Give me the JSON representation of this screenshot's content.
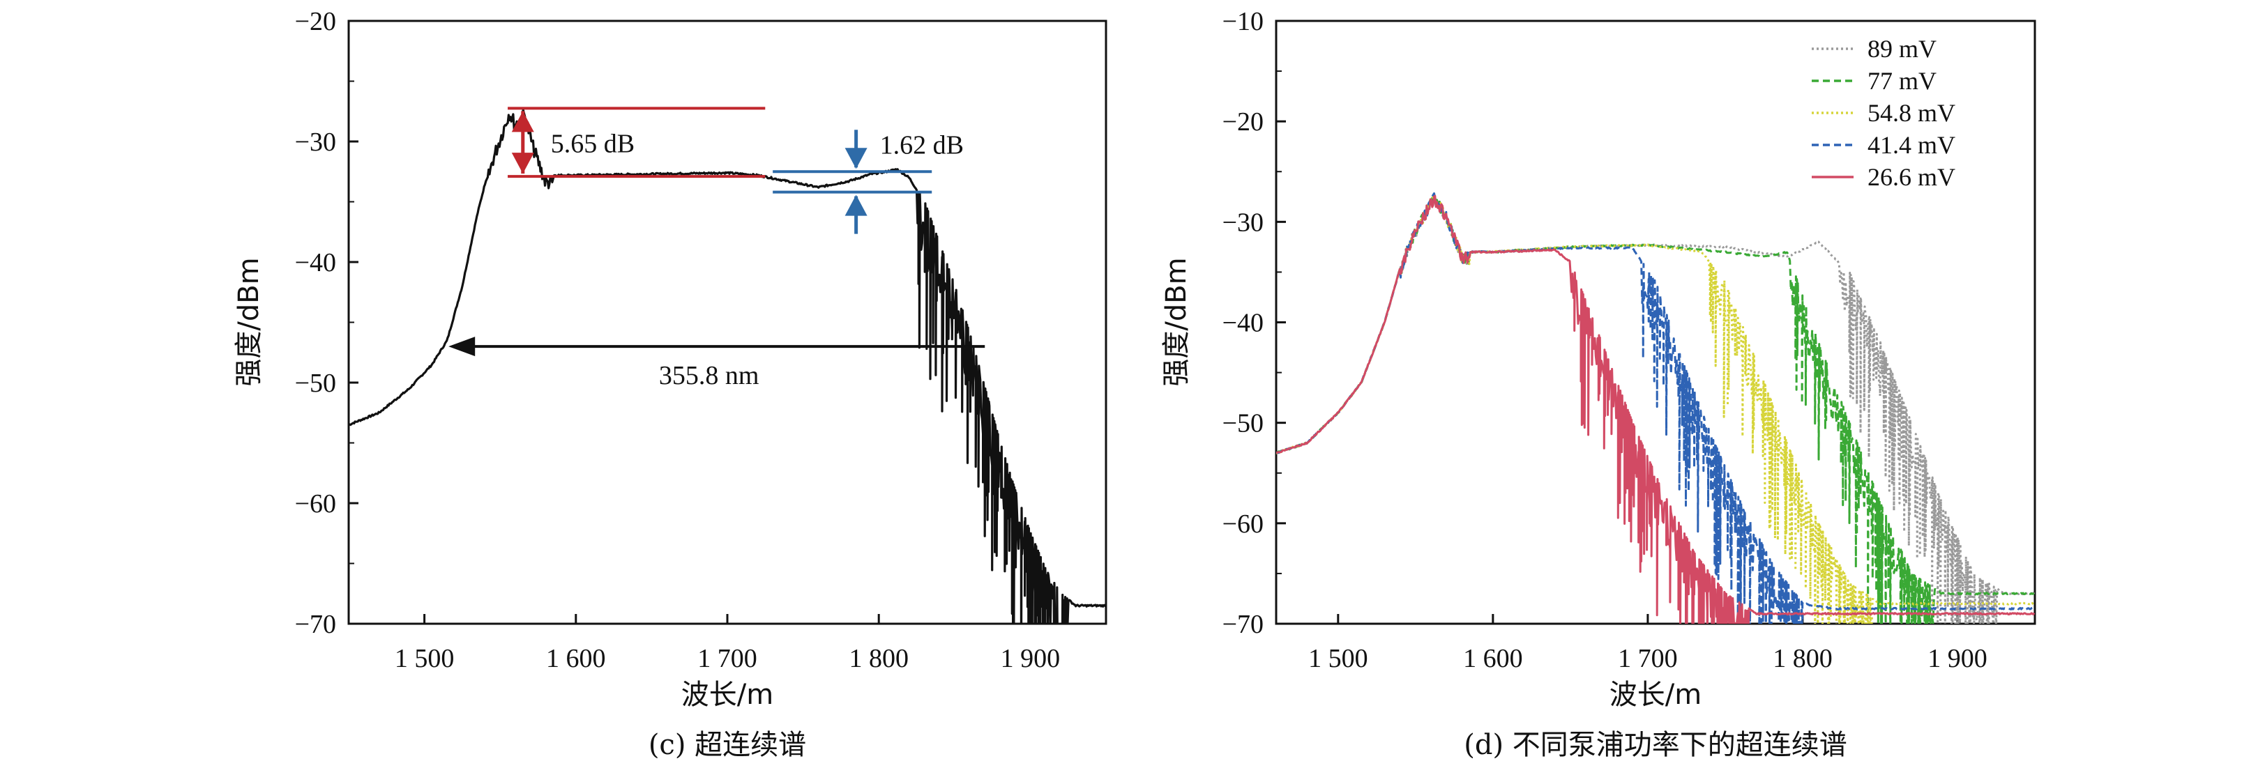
{
  "chart_data": [
    {
      "id": "c",
      "type": "line",
      "caption": "(c) 超连续谱",
      "xlabel": "波长/m",
      "ylabel": "强度/dBm",
      "xlim": [
        1450,
        1950
      ],
      "ylim": [
        -70,
        -20
      ],
      "xticks": [
        1500,
        1600,
        1700,
        1800,
        1900
      ],
      "xtick_labels": [
        "1 500",
        "1 600",
        "1 700",
        "1 800",
        "1 900"
      ],
      "yticks": [
        -70,
        -60,
        -50,
        -40,
        -30,
        -20
      ],
      "ytick_labels": [
        "−70",
        "−60",
        "−50",
        "−40",
        "−30",
        "−20"
      ],
      "grid": false,
      "series": [
        {
          "color": "#111111",
          "x": [
            1450,
            1470,
            1490,
            1505,
            1515,
            1525,
            1535,
            1545,
            1552,
            1556,
            1560,
            1566,
            1572,
            1580,
            1600,
            1650,
            1700,
            1720,
            1740,
            1760,
            1780,
            1795,
            1805,
            1812,
            1820,
            1830,
            1840,
            1850,
            1860,
            1870,
            1880,
            1890,
            1900,
            1910,
            1920,
            1930,
            1950
          ],
          "y": [
            -53.5,
            -52.5,
            -50.5,
            -48.5,
            -46.5,
            -42,
            -36,
            -31,
            -28.5,
            -27,
            -28,
            -27.2,
            -30,
            -32.8,
            -32.8,
            -32.7,
            -32.6,
            -32.8,
            -33.3,
            -33.8,
            -33.3,
            -32.7,
            -32.5,
            -32.3,
            -33,
            -35,
            -38.5,
            -42,
            -46,
            -50.5,
            -55,
            -59,
            -62.5,
            -65.5,
            -67.5,
            -68.5,
            -68.5
          ]
        }
      ],
      "annotations": [
        {
          "text": "5.65 dB",
          "type": "vertical-span",
          "color": "#c1272d",
          "x": 1565,
          "y": [
            -32.9,
            -27.25
          ],
          "line_x": [
            1555,
            1725
          ]
        },
        {
          "text": "1.62 dB",
          "type": "vertical-span",
          "color": "#2e6ba8",
          "x": 1785,
          "y": [
            -34.2,
            -32.5
          ],
          "line_x": [
            1730,
            1835
          ]
        },
        {
          "text": "355.8 nm",
          "type": "horizontal-span",
          "color": "#111111",
          "x": [
            1515,
            1870
          ],
          "y": -47
        }
      ]
    },
    {
      "id": "d",
      "type": "line",
      "caption": "(d) 不同泵浦功率下的超连续谱",
      "xlabel": "波长/m",
      "ylabel": "强度/dBm",
      "xlim": [
        1460,
        1950
      ],
      "ylim": [
        -70,
        -10
      ],
      "xticks": [
        1500,
        1600,
        1700,
        1800,
        1900
      ],
      "xtick_labels": [
        "1 500",
        "1 600",
        "1 700",
        "1 800",
        "1 900"
      ],
      "yticks": [
        -70,
        -60,
        -50,
        -40,
        -30,
        -20,
        -10
      ],
      "ytick_labels": [
        "−70",
        "−60",
        "−50",
        "−40",
        "−30",
        "−20",
        "−10"
      ],
      "grid": false,
      "legend_position": "top-right",
      "series": [
        {
          "name": "89 mV",
          "color": "#9a9a9a",
          "dash": "dotted",
          "x": [
            1460,
            1480,
            1500,
            1515,
            1530,
            1545,
            1555,
            1562,
            1570,
            1580,
            1600,
            1650,
            1700,
            1750,
            1790,
            1810,
            1830,
            1850,
            1870,
            1890,
            1910,
            1930,
            1950
          ],
          "y": [
            -53,
            -52,
            -49,
            -46,
            -40,
            -32,
            -29,
            -27,
            -29,
            -33,
            -33,
            -32.5,
            -32.3,
            -32.5,
            -33.5,
            -32,
            -35,
            -42,
            -50,
            -58,
            -65,
            -67,
            -67
          ]
        },
        {
          "name": "77 mV",
          "color": "#3aa935",
          "dash": "dashed",
          "x": [
            1460,
            1480,
            1500,
            1515,
            1530,
            1545,
            1555,
            1562,
            1570,
            1580,
            1600,
            1650,
            1700,
            1750,
            1775,
            1790,
            1810,
            1830,
            1850,
            1870,
            1890,
            1950
          ],
          "y": [
            -53,
            -52,
            -49,
            -46,
            -40,
            -32,
            -29,
            -27,
            -29,
            -33,
            -33,
            -32.5,
            -32.3,
            -33,
            -33.5,
            -33,
            -42,
            -50,
            -58,
            -65,
            -67,
            -67
          ]
        },
        {
          "name": "54.8 mV",
          "color": "#d6d43a",
          "dash": "dotted",
          "x": [
            1460,
            1480,
            1500,
            1515,
            1530,
            1545,
            1555,
            1562,
            1570,
            1580,
            1600,
            1650,
            1700,
            1735,
            1750,
            1770,
            1790,
            1810,
            1830,
            1850,
            1950
          ],
          "y": [
            -53,
            -52,
            -49,
            -46,
            -40,
            -32,
            -29,
            -27,
            -29,
            -33,
            -33,
            -32.5,
            -32.3,
            -33,
            -36,
            -44,
            -52,
            -60,
            -66,
            -68,
            -68
          ]
        },
        {
          "name": "41.4 mV",
          "color": "#2e63b5",
          "dash": "dashed",
          "x": [
            1460,
            1480,
            1500,
            1515,
            1530,
            1545,
            1555,
            1562,
            1570,
            1580,
            1600,
            1650,
            1690,
            1705,
            1720,
            1740,
            1760,
            1780,
            1800,
            1820,
            1950
          ],
          "y": [
            -53,
            -52,
            -49,
            -46,
            -40,
            -32,
            -29,
            -27,
            -29,
            -33,
            -33,
            -32.6,
            -32.6,
            -36,
            -43,
            -51,
            -58,
            -64,
            -68,
            -68.5,
            -68.5
          ]
        },
        {
          "name": "26.6 mV",
          "color": "#d24a64",
          "dash": "solid",
          "x": [
            1460,
            1480,
            1500,
            1515,
            1530,
            1545,
            1555,
            1562,
            1570,
            1580,
            1600,
            1640,
            1650,
            1670,
            1690,
            1710,
            1730,
            1750,
            1770,
            1790,
            1950
          ],
          "y": [
            -53,
            -52,
            -49,
            -46,
            -40,
            -32,
            -29,
            -27,
            -29,
            -33,
            -33,
            -32.8,
            -34,
            -42,
            -50,
            -57,
            -63,
            -67,
            -69,
            -69,
            -69
          ]
        }
      ]
    }
  ]
}
